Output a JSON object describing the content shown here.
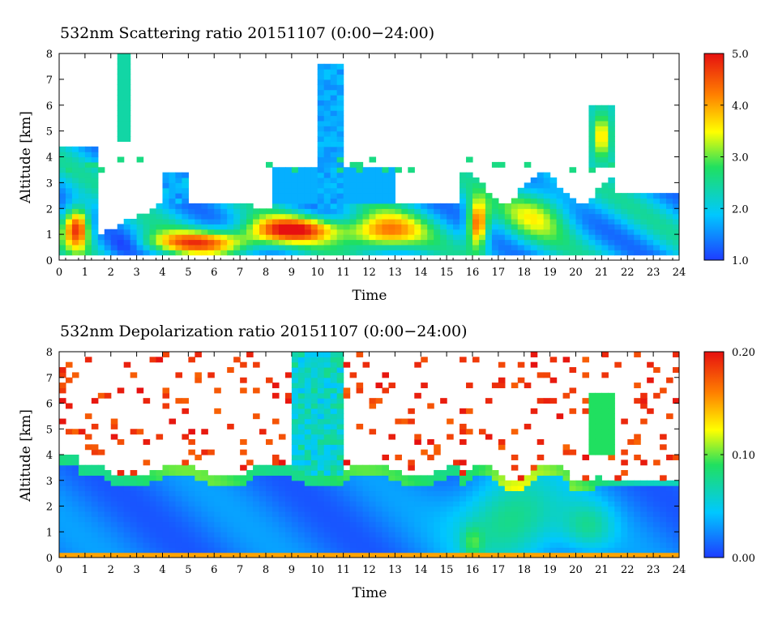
{
  "chart_data": [
    {
      "type": "heatmap",
      "title": "532nm Scattering ratio  20151107 (0:00−24:00)",
      "xlabel": "Time",
      "ylabel": "Altitude [km]",
      "xlim": [
        0,
        24
      ],
      "ylim": [
        0,
        8
      ],
      "x_ticks": [
        "0",
        "1",
        "2",
        "3",
        "4",
        "5",
        "6",
        "7",
        "8",
        "9",
        "10",
        "11",
        "12",
        "13",
        "14",
        "15",
        "16",
        "17",
        "18",
        "19",
        "20",
        "21",
        "22",
        "23",
        "24"
      ],
      "y_ticks": [
        "0",
        "1",
        "2",
        "3",
        "4",
        "5",
        "6",
        "7",
        "8"
      ],
      "colorbar": {
        "min": 1.0,
        "max": 5.0,
        "ticks": [
          "1.0",
          "2.0",
          "3.0",
          "4.0",
          "5.0"
        ]
      },
      "colormap": [
        "#1e3cff",
        "#00c8ff",
        "#20e060",
        "#ffff00",
        "#ff8000",
        "#e61010"
      ],
      "features": [
        {
          "description_hours": [
            0,
            1.5
          ],
          "altitude_km": [
            0.2,
            4.5
          ],
          "value_level": "high"
        },
        {
          "description_hours": [
            4,
            15
          ],
          "altitude_km": [
            0.3,
            2.2
          ],
          "value_level": "high"
        },
        {
          "description_hours": [
            10,
            11
          ],
          "altitude_km": [
            2,
            8
          ],
          "value_level": "low"
        },
        {
          "description_hours": [
            15.5,
            17
          ],
          "altitude_km": [
            0.2,
            2.8
          ],
          "value_level": "high"
        },
        {
          "description_hours": [
            20.5,
            21.5
          ],
          "altitude_km": [
            1,
            6
          ],
          "value_level": "medium"
        }
      ]
    },
    {
      "type": "heatmap",
      "title": "532nm Depolarization ratio  20151107 (0:00−24:00)",
      "xlabel": "Time",
      "ylabel": "Altitude [km]",
      "xlim": [
        0,
        24
      ],
      "ylim": [
        0,
        8
      ],
      "x_ticks": [
        "0",
        "1",
        "2",
        "3",
        "4",
        "5",
        "6",
        "7",
        "8",
        "9",
        "10",
        "11",
        "12",
        "13",
        "14",
        "15",
        "16",
        "17",
        "18",
        "19",
        "20",
        "21",
        "22",
        "23",
        "24"
      ],
      "y_ticks": [
        "0",
        "1",
        "2",
        "3",
        "4",
        "5",
        "6",
        "7",
        "8"
      ],
      "colorbar": {
        "min": 0.0,
        "max": 0.2,
        "ticks": [
          "0.00",
          "0.10",
          "0.20"
        ]
      },
      "colormap": [
        "#1e3cff",
        "#00c8ff",
        "#20e060",
        "#ffff00",
        "#ff8000",
        "#e61010"
      ],
      "features": [
        {
          "description_hours": [
            0,
            24
          ],
          "altitude_km": [
            0,
            3.5
          ],
          "value_level": "low"
        },
        {
          "description_hours": [
            0,
            24
          ],
          "altitude_km": [
            3.5,
            8
          ],
          "value_level": "noise-high"
        },
        {
          "description_hours": [
            15.5,
            20
          ],
          "altitude_km": [
            0,
            3.2
          ],
          "value_level": "medium"
        },
        {
          "description_hours": [
            20.5,
            21.5
          ],
          "altitude_km": [
            4,
            6.5
          ],
          "value_level": "medium"
        }
      ]
    }
  ]
}
